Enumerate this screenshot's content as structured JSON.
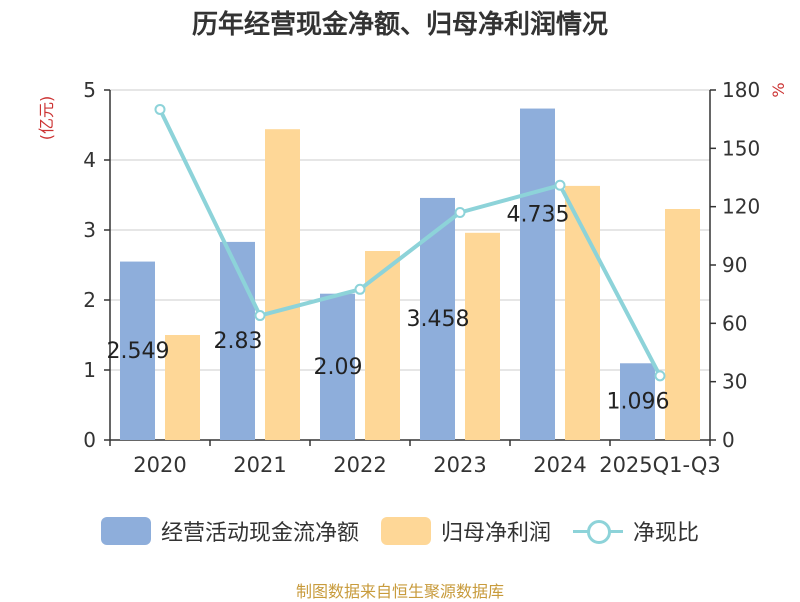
{
  "title": "历年经营现金净额、归母净利润情况",
  "source": "制图数据来自恒生聚源数据库",
  "colors": {
    "cash": "#8eaedb",
    "profit": "#fed797",
    "ratio": "#8dd3d9",
    "axis_unit": "#cc3333",
    "source": "#c89b3c"
  },
  "chart_data": {
    "type": "bar",
    "categories": [
      "2020",
      "2021",
      "2022",
      "2023",
      "2024",
      "2025Q1-Q3"
    ],
    "left_axis": {
      "unit": "(亿元)",
      "ylim": [
        0,
        5
      ],
      "ticks": [
        "0",
        "1",
        "2",
        "3",
        "4",
        "5"
      ]
    },
    "right_axis": {
      "unit": "%",
      "ylim": [
        0,
        180
      ],
      "ticks": [
        "0",
        "30",
        "60",
        "90",
        "120",
        "150",
        "180"
      ]
    },
    "series": [
      {
        "name": "经营活动现金流净额",
        "type": "bar",
        "axis": "left",
        "values": [
          2.549,
          2.83,
          2.09,
          3.458,
          4.735,
          1.096
        ],
        "labels": [
          "2.549",
          "2.83",
          "2.09",
          "3.458",
          "4.735",
          "1.096"
        ]
      },
      {
        "name": "归母净利润",
        "type": "bar",
        "axis": "left",
        "values": [
          1.5,
          4.44,
          2.7,
          2.96,
          3.63,
          3.3
        ]
      },
      {
        "name": "净现比",
        "type": "line",
        "axis": "right",
        "values": [
          170,
          64,
          77.5,
          117,
          131,
          33
        ]
      }
    ],
    "grid": true,
    "legend_position": "bottom"
  }
}
